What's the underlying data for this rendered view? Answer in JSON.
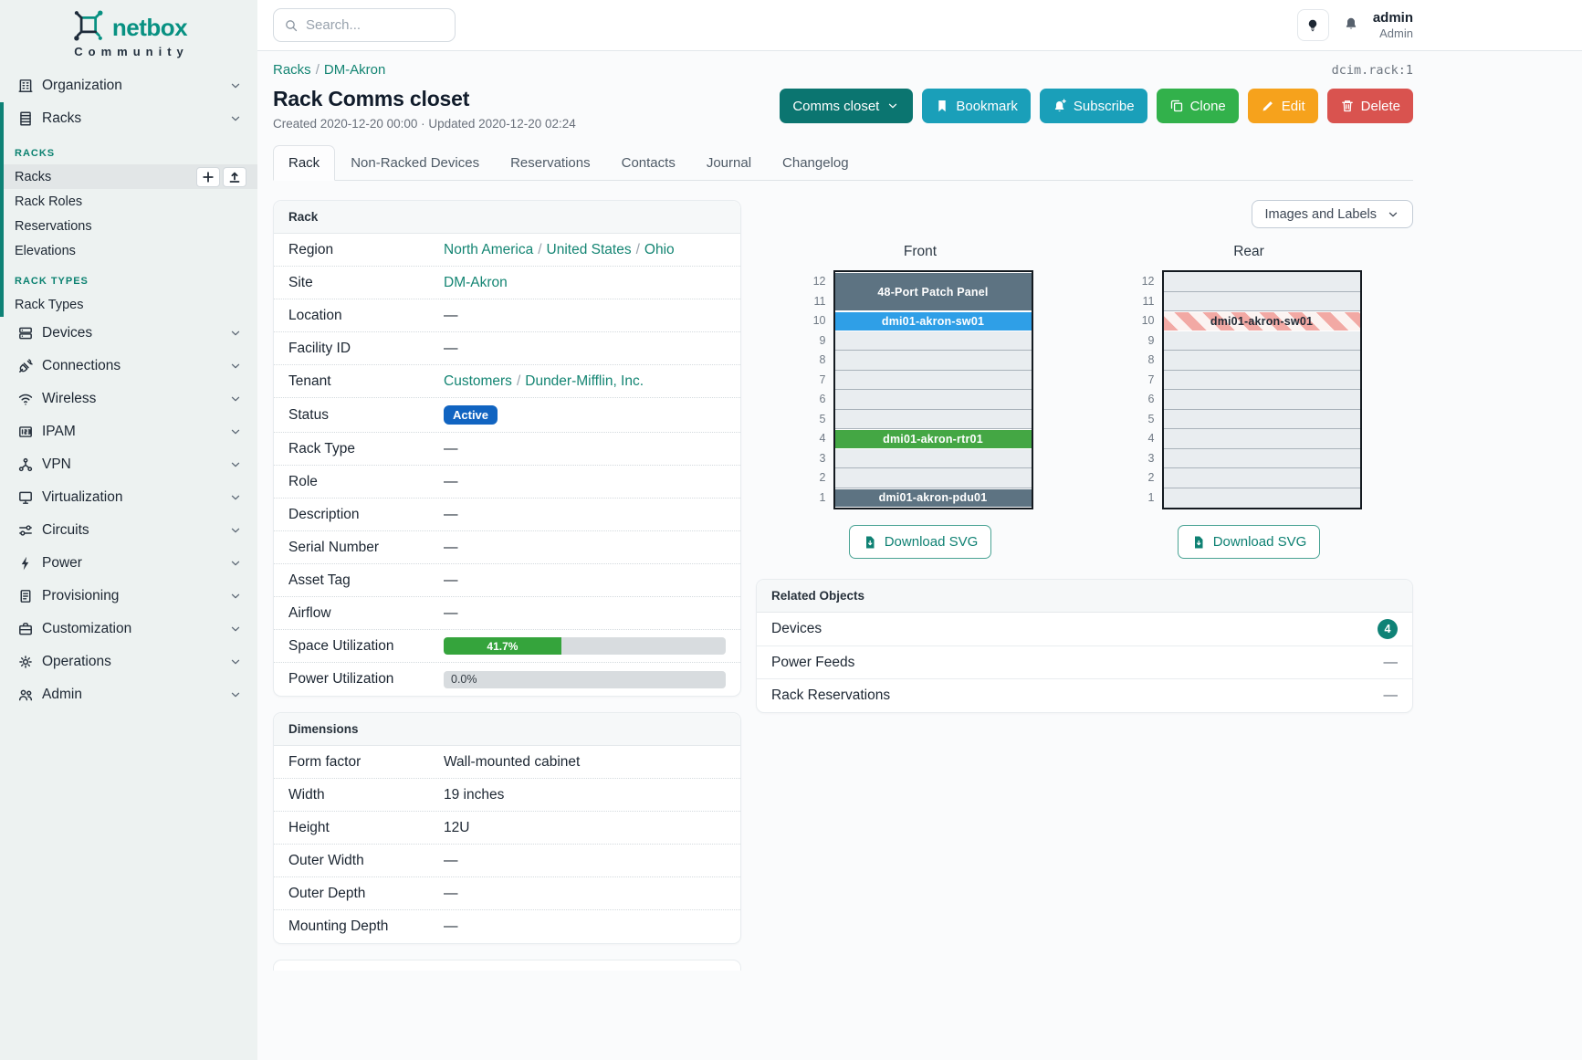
{
  "brand": {
    "name": "netbox",
    "tagline": "Community"
  },
  "ui": {
    "sep": "/"
  },
  "topbar": {
    "search_placeholder": "Search...",
    "user_name": "admin",
    "user_role": "Admin"
  },
  "icons": {
    "netbox-logo-icon": "netbox node-square logo",
    "search-icon": "magnifier",
    "lightbulb-icon": "theme toggle bulb",
    "bell-icon": "notifications bell",
    "chevron-down-icon": "chevron down",
    "plus-icon": "add plus",
    "upload-icon": "import upload arrow",
    "bookmark-icon": "bookmark ribbon",
    "bell-plus-icon": "subscribe bell with plus",
    "copy-icon": "clone overlapping sheets",
    "pencil-icon": "edit pencil",
    "trash-icon": "delete trash can",
    "file-download-icon": "file with down arrow"
  },
  "sidebar": {
    "top_items": [
      {
        "label": "Organization",
        "icon": "organization-icon"
      },
      {
        "label": "Racks",
        "icon": "racks-icon"
      }
    ],
    "groups": [
      {
        "header": "RACKS",
        "items": [
          "Racks",
          "Rack Roles",
          "Reservations",
          "Elevations"
        ]
      },
      {
        "header": "RACK TYPES",
        "items": [
          "Rack Types"
        ]
      }
    ],
    "nav_items": [
      {
        "label": "Devices",
        "icon": "devices-icon"
      },
      {
        "label": "Connections",
        "icon": "connections-icon"
      },
      {
        "label": "Wireless",
        "icon": "wireless-icon"
      },
      {
        "label": "IPAM",
        "icon": "ipam-icon"
      },
      {
        "label": "VPN",
        "icon": "vpn-icon"
      },
      {
        "label": "Virtualization",
        "icon": "virtualization-icon"
      },
      {
        "label": "Circuits",
        "icon": "circuits-icon"
      },
      {
        "label": "Power",
        "icon": "power-icon"
      },
      {
        "label": "Provisioning",
        "icon": "provisioning-icon"
      },
      {
        "label": "Customization",
        "icon": "customization-icon"
      },
      {
        "label": "Operations",
        "icon": "operations-icon"
      },
      {
        "label": "Admin",
        "icon": "admin-icon"
      }
    ]
  },
  "breadcrumb": {
    "parent": "Racks",
    "current": "DM-Akron"
  },
  "object_ref": "dcim.rack:1",
  "page": {
    "title": "Rack Comms closet",
    "meta": "Created 2020-12-20 00:00 · Updated 2020-12-20 02:24"
  },
  "actions": {
    "primary": "Comms closet",
    "bookmark": "Bookmark",
    "subscribe": "Subscribe",
    "clone": "Clone",
    "edit": "Edit",
    "delete": "Delete"
  },
  "tabs": [
    "Rack",
    "Non-Racked Devices",
    "Reservations",
    "Contacts",
    "Journal",
    "Changelog"
  ],
  "rack": {
    "title": "Rack",
    "region": {
      "label": "Region",
      "links": [
        "North America",
        "United States",
        "Ohio"
      ]
    },
    "site": {
      "label": "Site",
      "link": "DM-Akron"
    },
    "location": {
      "label": "Location",
      "value": "—"
    },
    "facility_id": {
      "label": "Facility ID",
      "value": "—"
    },
    "tenant": {
      "label": "Tenant",
      "links": [
        "Customers",
        "Dunder-Mifflin, Inc."
      ]
    },
    "status": {
      "label": "Status",
      "badge": "Active",
      "color": "#1164c1"
    },
    "rack_type": {
      "label": "Rack Type",
      "value": "—"
    },
    "role": {
      "label": "Role",
      "value": "—"
    },
    "description": {
      "label": "Description",
      "value": "—"
    },
    "serial_number": {
      "label": "Serial Number",
      "value": "—"
    },
    "asset_tag": {
      "label": "Asset Tag",
      "value": "—"
    },
    "airflow": {
      "label": "Airflow",
      "value": "—"
    },
    "space_util": {
      "label": "Space Utilization",
      "percent": 41.7,
      "display": "41.7%",
      "color": "#35a43c"
    },
    "power_util": {
      "label": "Power Utilization",
      "percent": 0.0,
      "display": "0.0%"
    }
  },
  "dimensions": {
    "title": "Dimensions",
    "rows": [
      {
        "label": "Form factor",
        "value": "Wall-mounted cabinet"
      },
      {
        "label": "Width",
        "value": "19 inches"
      },
      {
        "label": "Height",
        "value": "12U"
      },
      {
        "label": "Outer Width",
        "value": "—"
      },
      {
        "label": "Outer Depth",
        "value": "—"
      },
      {
        "label": "Mounting Depth",
        "value": "—"
      }
    ]
  },
  "elevations": {
    "view_toggle": "Images and Labels",
    "download_label": "Download SVG",
    "unit_count": 12,
    "front": {
      "title": "Front",
      "slots": [
        {
          "span": 2,
          "label": "48-Port Patch Panel",
          "color": "#5d7382"
        },
        {
          "span": 1,
          "label": "dmi01-akron-sw01",
          "color": "#2f9fe7"
        },
        {
          "span": 1
        },
        {
          "span": 1
        },
        {
          "span": 1
        },
        {
          "span": 1
        },
        {
          "span": 1
        },
        {
          "span": 1,
          "label": "dmi01-akron-rtr01",
          "color": "#44a744"
        },
        {
          "span": 1
        },
        {
          "span": 1
        },
        {
          "span": 1,
          "label": "dmi01-akron-pdu01",
          "color": "#5d7382"
        }
      ]
    },
    "rear": {
      "title": "Rear",
      "slots": [
        {
          "span": 1
        },
        {
          "span": 1
        },
        {
          "span": 1,
          "label": "dmi01-akron-sw01",
          "striped": true
        },
        {
          "span": 1
        },
        {
          "span": 1
        },
        {
          "span": 1
        },
        {
          "span": 1
        },
        {
          "span": 1
        },
        {
          "span": 1
        },
        {
          "span": 1
        },
        {
          "span": 1
        },
        {
          "span": 1
        }
      ]
    }
  },
  "related": {
    "title": "Related Objects",
    "devices_label": "Devices",
    "devices_count": "4",
    "power_feeds_label": "Power Feeds",
    "power_feeds_value": "—",
    "reservations_label": "Rack Reservations",
    "reservations_value": "—"
  },
  "colors": {
    "accent_teal": "#0e8276",
    "link_teal": "#148573",
    "status_blue": "#1164c1",
    "utilization_green": "#35a43c",
    "device_slate": "#5d7382",
    "device_blue": "#2f9fe7",
    "device_green": "#44a744"
  }
}
